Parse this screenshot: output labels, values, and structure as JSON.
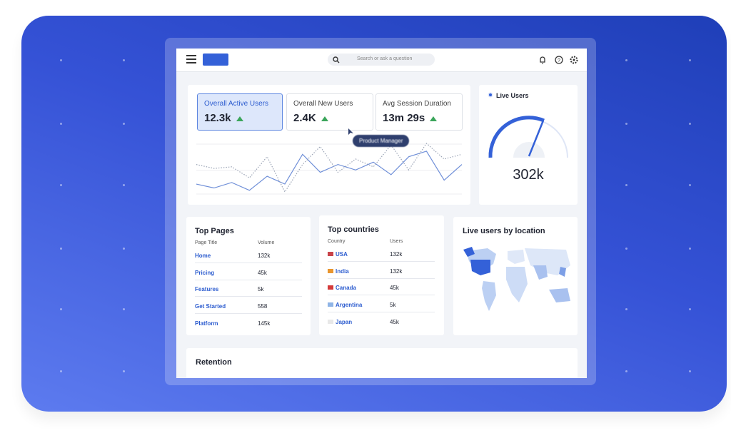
{
  "header": {
    "search_placeholder": "Search or ask a question"
  },
  "metrics": [
    {
      "label": "Overall Active Users",
      "value": "12.3k"
    },
    {
      "label": "Overall New Users",
      "value": "2.4K"
    },
    {
      "label": "Avg Session Duration",
      "value": "13m 29s"
    }
  ],
  "tooltip": "Product Manager",
  "trend_chart": {
    "type": "line",
    "series": [
      {
        "color": "#6f8fd8",
        "values": [
          22,
          17,
          24,
          14,
          32,
          22,
          60,
          37,
          47,
          40,
          50,
          34,
          57,
          64,
          27,
          47
        ]
      },
      {
        "color": "#9aa3b5",
        "values": [
          47,
          42,
          44,
          30,
          57,
          12,
          47,
          70,
          37,
          54,
          44,
          72,
          40,
          74,
          54,
          60
        ]
      }
    ]
  },
  "live_users": {
    "title": "Live Users",
    "value": "302k"
  },
  "top_pages": {
    "title": "Top Pages",
    "columns": [
      "Page Title",
      "Volume"
    ],
    "rows": [
      [
        "Home",
        "132k"
      ],
      [
        "Pricing",
        "45k"
      ],
      [
        "Features",
        "5k"
      ],
      [
        "Get Started",
        "558"
      ],
      [
        "Platform",
        "145k"
      ]
    ]
  },
  "top_countries": {
    "title": "Top countries",
    "columns": [
      "Country",
      "Users"
    ],
    "rows": [
      [
        "USA",
        "132k"
      ],
      [
        "India",
        "132k"
      ],
      [
        "Canada",
        "45k"
      ],
      [
        "Argentina",
        "5k"
      ],
      [
        "Japan",
        "45k"
      ]
    ]
  },
  "map": {
    "title": "Live users by location"
  },
  "retention": {
    "title": "Retention"
  }
}
